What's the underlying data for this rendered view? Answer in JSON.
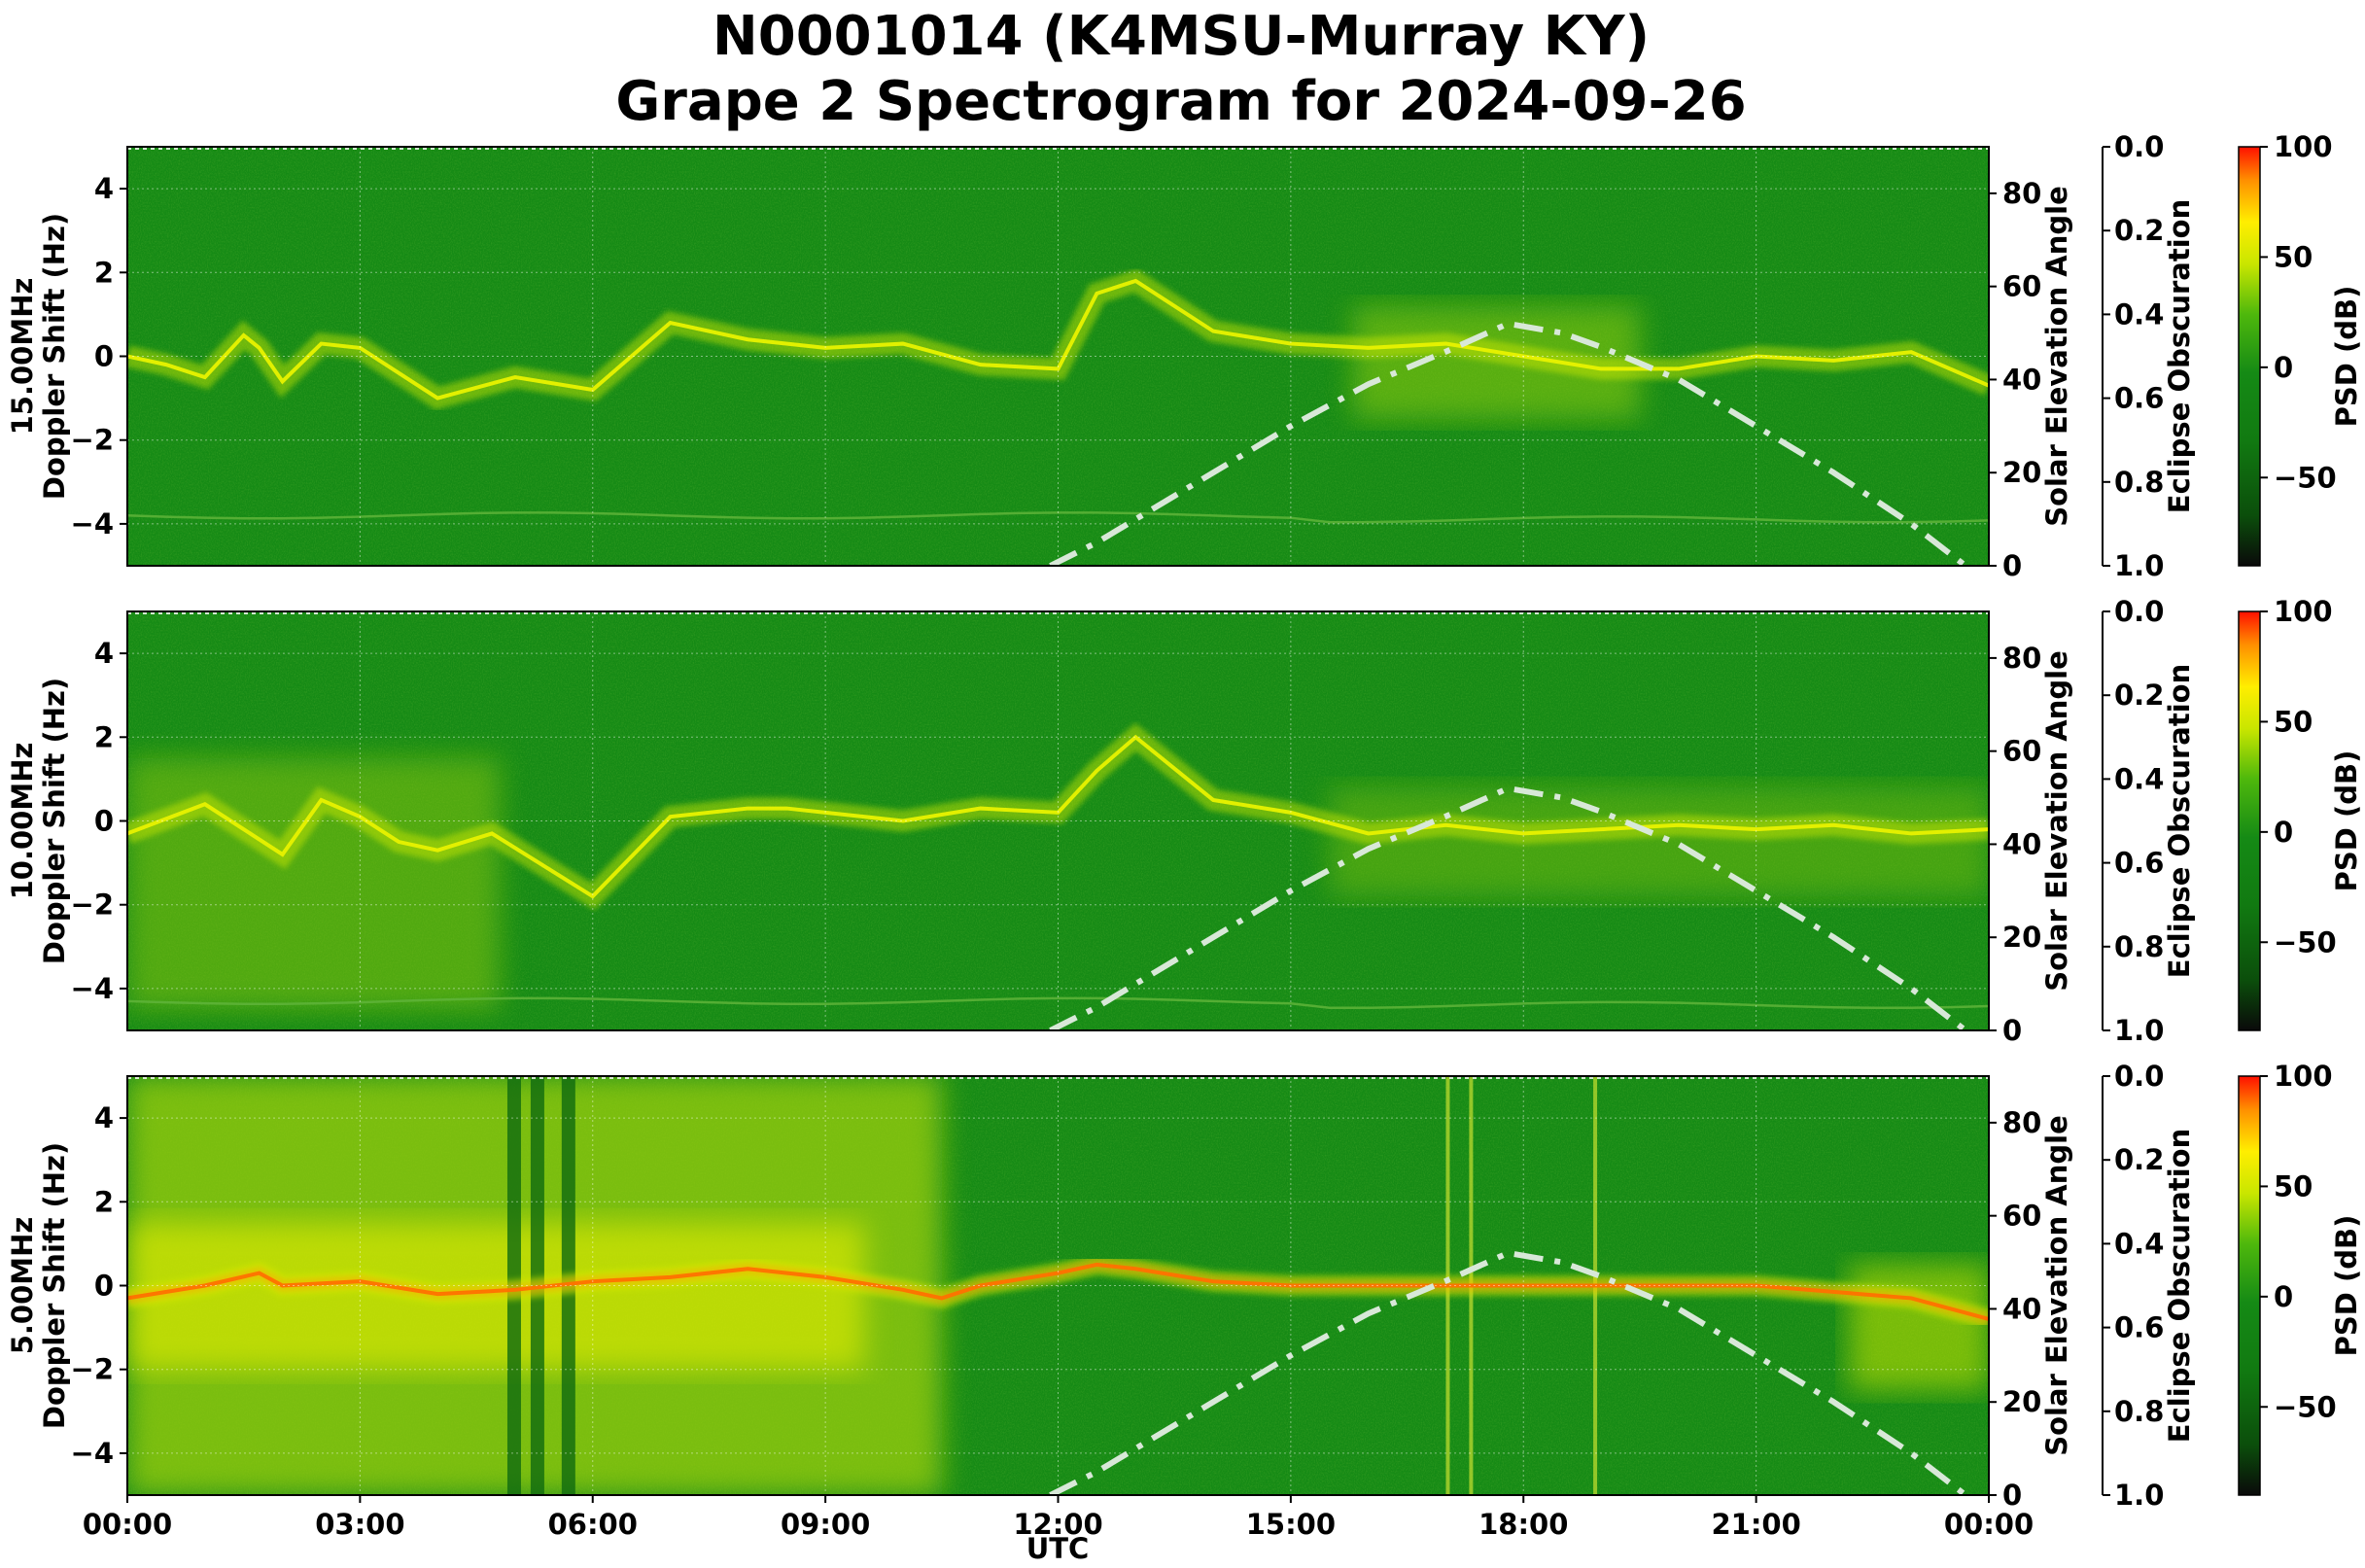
{
  "figure": {
    "title_line1": "N0001014 (K4MSU-Murray KY)",
    "title_line2": "Grape 2 Spectrogram for 2024-09-26"
  },
  "axes_labels": {
    "xlabel": "UTC",
    "ylabel_doppler": "Doppler Shift (Hz)",
    "ylabel_solar": "Solar Elevation Angle",
    "ylabel_eclipse": "Eclipse Obscuration",
    "ylabel_psd": "PSD (dB)"
  },
  "x_ticks": [
    "00:00",
    "03:00",
    "06:00",
    "09:00",
    "12:00",
    "15:00",
    "18:00",
    "21:00",
    "00:00"
  ],
  "doppler_ticks": [
    "4",
    "2",
    "0",
    "−2",
    "−4"
  ],
  "solar_ticks": [
    "80",
    "60",
    "40",
    "20",
    "0"
  ],
  "eclipse_ticks": [
    "0.0",
    "0.2",
    "0.4",
    "0.6",
    "0.8",
    "1.0"
  ],
  "psd_ticks": [
    "100",
    "50",
    "0",
    "−50"
  ],
  "panels": [
    {
      "freq_label": "15.00MHz"
    },
    {
      "freq_label": "10.00MHz"
    },
    {
      "freq_label": "5.00MHz"
    }
  ],
  "colors": {
    "background_green": "#158a15",
    "trace_yellow": "#e8f200",
    "hot_red": "#ff3a00",
    "solar_curve": "#d8e8d8",
    "colorbar_stops": [
      "#0a0a0a",
      "#0b5a0b",
      "#158a15",
      "#2fae10",
      "#b9e000",
      "#ffee00",
      "#ff8800",
      "#ff0000"
    ]
  },
  "chart_data": {
    "type": "heatmap",
    "title": "N0001014 (K4MSU-Murray KY) Grape 2 Spectrogram for 2024-09-26",
    "xlabel": "UTC",
    "ylabel": "Doppler Shift (Hz)",
    "x_range_hours": [
      0,
      24
    ],
    "ylim": [
      -5,
      5
    ],
    "secondary_ylim_solar_elevation": [
      0,
      90
    ],
    "eclipse_obscuration_range": [
      0.0,
      1.0
    ],
    "colorbar_range_dB": [
      -90,
      100
    ],
    "grid": true,
    "solar_elevation_curve": {
      "x_hours": [
        11.9,
        12.5,
        13,
        14,
        15,
        16,
        17,
        17.8,
        18.5,
        19,
        20,
        21,
        22,
        23,
        23.7
      ],
      "elevation_deg": [
        0,
        5,
        10,
        20,
        30,
        39,
        46,
        52,
        50,
        47,
        40,
        30,
        20,
        9,
        0
      ]
    },
    "series": [
      {
        "name": "15.00MHz",
        "main_trace_x": [
          0,
          0.5,
          1,
          1.5,
          1.7,
          2,
          2.5,
          3,
          4,
          5,
          6,
          7,
          8,
          9,
          10,
          11,
          12,
          12.5,
          13,
          14,
          15,
          16,
          17,
          18,
          19,
          20,
          21,
          22,
          23,
          24
        ],
        "main_trace_doppler_hz": [
          0,
          -0.2,
          -0.5,
          0.5,
          0.2,
          -0.6,
          0.3,
          0.2,
          -1,
          -0.5,
          -0.8,
          0.8,
          0.4,
          0.2,
          0.3,
          -0.2,
          -0.3,
          1.5,
          1.8,
          0.6,
          0.3,
          0.2,
          0.3,
          0,
          -0.3,
          -0.3,
          0,
          -0.1,
          0.1,
          -0.7
        ],
        "faint_trace_doppler_hz": -3.8
      },
      {
        "name": "10.00MHz",
        "main_trace_x": [
          0,
          1,
          2,
          2.5,
          3,
          3.5,
          4,
          4.7,
          6,
          7,
          8,
          8.5,
          9,
          10,
          11,
          12,
          12.5,
          13,
          14,
          15,
          16,
          17,
          18,
          19,
          20,
          21,
          22,
          23,
          24
        ],
        "main_trace_doppler_hz": [
          -0.3,
          0.4,
          -0.8,
          0.5,
          0.1,
          -0.5,
          -0.7,
          -0.3,
          -1.8,
          0.1,
          0.3,
          0.3,
          0.2,
          0,
          0.3,
          0.2,
          1.2,
          2.0,
          0.5,
          0.2,
          -0.3,
          -0.1,
          -0.3,
          -0.2,
          -0.1,
          -0.2,
          -0.1,
          -0.3,
          -0.2
        ],
        "faint_trace_doppler_hz": -4.3
      },
      {
        "name": "5.00MHz",
        "main_trace_x": [
          0,
          1,
          1.7,
          2,
          3,
          4,
          5,
          6,
          7,
          8,
          9,
          10,
          10.5,
          11,
          12,
          12.5,
          13,
          14,
          15,
          18,
          21,
          23,
          24
        ],
        "main_trace_doppler_hz": [
          -0.3,
          0,
          0.3,
          0,
          0.1,
          -0.2,
          -0.1,
          0.1,
          0.2,
          0.4,
          0.2,
          -0.1,
          -0.3,
          0,
          0.3,
          0.5,
          0.4,
          0.1,
          0,
          0,
          0,
          -0.3,
          -0.8
        ],
        "vertical_streak_hours": [
          17.0,
          17.3,
          18.9
        ]
      }
    ]
  }
}
